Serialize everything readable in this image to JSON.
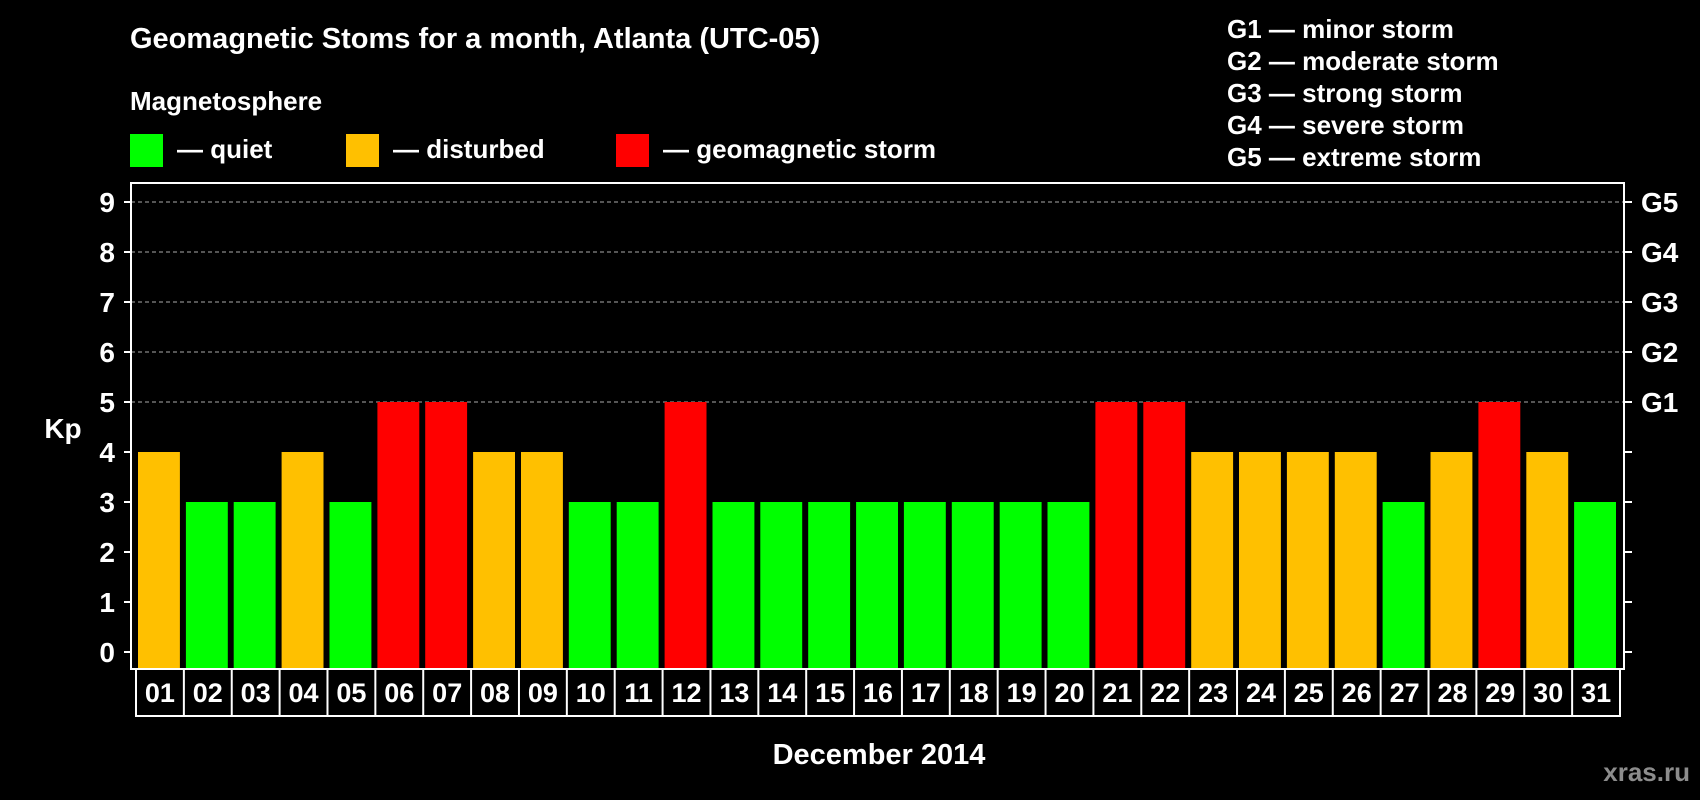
{
  "chart_data": {
    "type": "bar",
    "title": "Geomagnetic Stoms for a month, Atlanta (UTC-05)",
    "legend_heading": "Magnetosphere",
    "legend": [
      {
        "key": "quiet",
        "label": "— quiet",
        "color": "#00ff00"
      },
      {
        "key": "disturbed",
        "label": "— disturbed",
        "color": "#ffc000"
      },
      {
        "key": "storm",
        "label": "— geomagnetic storm",
        "color": "#ff0000"
      }
    ],
    "storm_scale": [
      "G1 — minor storm",
      "G2 — moderate storm",
      "G3 — strong storm",
      "G4 — severe storm",
      "G5 — extreme storm"
    ],
    "ylabel": "Kp",
    "xlabel": "December 2014",
    "ylim": [
      0,
      9
    ],
    "y_ticks": [
      0,
      1,
      2,
      3,
      4,
      5,
      6,
      7,
      8,
      9
    ],
    "right_ticks": [
      {
        "value": 5,
        "label": "G1"
      },
      {
        "value": 6,
        "label": "G2"
      },
      {
        "value": 7,
        "label": "G3"
      },
      {
        "value": 8,
        "label": "G4"
      },
      {
        "value": 9,
        "label": "G5"
      }
    ],
    "grid": "dashed horizontal at 5-9",
    "categories": [
      "01",
      "02",
      "03",
      "04",
      "05",
      "06",
      "07",
      "08",
      "09",
      "10",
      "11",
      "12",
      "13",
      "14",
      "15",
      "16",
      "17",
      "18",
      "19",
      "20",
      "21",
      "22",
      "23",
      "24",
      "25",
      "26",
      "27",
      "28",
      "29",
      "30",
      "31"
    ],
    "values": [
      4,
      3,
      3,
      4,
      3,
      5,
      5,
      4,
      4,
      3,
      3,
      5,
      3,
      3,
      3,
      3,
      3,
      3,
      3,
      3,
      5,
      5,
      4,
      4,
      4,
      4,
      3,
      4,
      5,
      4,
      3
    ],
    "status": [
      "disturbed",
      "quiet",
      "quiet",
      "disturbed",
      "quiet",
      "storm",
      "storm",
      "disturbed",
      "disturbed",
      "quiet",
      "quiet",
      "storm",
      "quiet",
      "quiet",
      "quiet",
      "quiet",
      "quiet",
      "quiet",
      "quiet",
      "quiet",
      "storm",
      "storm",
      "disturbed",
      "disturbed",
      "disturbed",
      "disturbed",
      "quiet",
      "disturbed",
      "storm",
      "disturbed",
      "quiet"
    ]
  },
  "watermark": "xras.ru"
}
